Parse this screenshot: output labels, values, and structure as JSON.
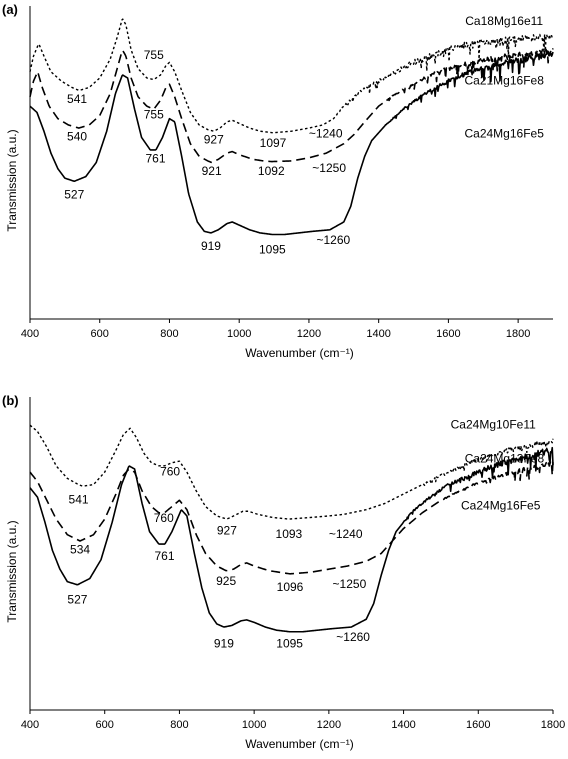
{
  "chart_data": [
    {
      "panel_label": "(a)",
      "type": "line",
      "title": "",
      "xlabel": "Wavenumber (cm⁻¹)",
      "ylabel": "Transmission (a.u.)",
      "xlim": [
        400,
        1900
      ],
      "xticks": [
        400,
        600,
        800,
        1000,
        1200,
        1400,
        1600,
        1800
      ],
      "y_unit": "arbitrary, curves vertically offset",
      "ylim": [
        0,
        100
      ],
      "grid": false,
      "series": [
        {
          "name": "Ca18Mg16e11",
          "dash": "dotted",
          "noise_from": 1270,
          "x": [
            400,
            410,
            425,
            440,
            460,
            490,
            520,
            541,
            570,
            600,
            630,
            650,
            665,
            675,
            690,
            710,
            735,
            755,
            775,
            790,
            800,
            815,
            835,
            860,
            885,
            910,
            927,
            945,
            965,
            980,
            1000,
            1030,
            1060,
            1097,
            1150,
            1200,
            1240,
            1270,
            1300,
            1350,
            1400,
            1450,
            1500,
            1550,
            1600,
            1650,
            1700,
            1750,
            1800,
            1850,
            1900
          ],
          "y": [
            79,
            84,
            88,
            84,
            79,
            76,
            74,
            73,
            74,
            77,
            83,
            90,
            96,
            94,
            86,
            80,
            77,
            76.5,
            78,
            81,
            82,
            79,
            73,
            66,
            62,
            60.5,
            60,
            61,
            63,
            63.5,
            62.5,
            61,
            60,
            59.5,
            60,
            61,
            62,
            64,
            68,
            73,
            76,
            79,
            82,
            84,
            86,
            87.5,
            88.5,
            89,
            89.5,
            90,
            90
          ]
        },
        {
          "name": "Ca21Mg16Fe8",
          "dash": "dashed",
          "noise_from": 1420,
          "x": [
            400,
            410,
            422,
            435,
            455,
            480,
            510,
            540,
            570,
            600,
            630,
            650,
            665,
            675,
            690,
            710,
            735,
            755,
            775,
            790,
            800,
            815,
            835,
            860,
            885,
            910,
            921,
            940,
            965,
            980,
            1000,
            1040,
            1070,
            1092,
            1150,
            1200,
            1250,
            1300,
            1330,
            1360,
            1400,
            1450,
            1500,
            1550,
            1600,
            1650,
            1700,
            1750,
            1800,
            1850,
            1900
          ],
          "y": [
            71,
            76,
            79,
            74,
            68,
            64,
            62,
            61,
            62,
            65,
            72,
            80,
            86,
            84,
            77,
            71,
            68,
            67,
            70,
            74,
            75,
            71,
            64,
            56,
            52,
            50.5,
            50,
            51,
            53,
            53.5,
            52.5,
            51,
            50.5,
            50.3,
            50.5,
            51.5,
            53,
            56,
            59,
            63,
            68,
            72,
            75,
            78,
            80,
            81.5,
            82.5,
            83.5,
            84.5,
            85,
            85.5
          ]
        },
        {
          "name": "Ca24Mg16Fe5",
          "dash": "solid",
          "noise_from": 1420,
          "x": [
            400,
            420,
            440,
            460,
            480,
            500,
            527,
            560,
            590,
            620,
            645,
            665,
            680,
            700,
            720,
            745,
            761,
            780,
            800,
            815,
            835,
            855,
            880,
            900,
            919,
            940,
            965,
            980,
            1000,
            1030,
            1060,
            1095,
            1130,
            1170,
            1210,
            1260,
            1300,
            1320,
            1340,
            1360,
            1380,
            1420,
            1470,
            1520,
            1580,
            1640,
            1700,
            1760,
            1820,
            1900
          ],
          "y": [
            68,
            66,
            60,
            53,
            48,
            45,
            44,
            45.5,
            50,
            60,
            72,
            78,
            77,
            67,
            58,
            54,
            54,
            58,
            64,
            63,
            52,
            40,
            31,
            28,
            27.5,
            28.5,
            30.5,
            31,
            30,
            28.5,
            27.5,
            27,
            27,
            27.5,
            28,
            28.5,
            31,
            36,
            45,
            52,
            57,
            62,
            67,
            71,
            75,
            78,
            80,
            82,
            83,
            85
          ]
        }
      ],
      "annotations": [
        {
          "text": "541",
          "x": 535,
          "y": 69
        },
        {
          "text": "755",
          "x": 755,
          "y": 83
        },
        {
          "text": "755",
          "x": 755,
          "y": 64
        },
        {
          "text": "927",
          "x": 927,
          "y": 56
        },
        {
          "text": "1097",
          "x": 1097,
          "y": 55
        },
        {
          "text": "~1240",
          "x": 1248,
          "y": 58
        },
        {
          "text": "540",
          "x": 535,
          "y": 57
        },
        {
          "text": "761",
          "x": 760,
          "y": 50
        },
        {
          "text": "921",
          "x": 921,
          "y": 46
        },
        {
          "text": "1092",
          "x": 1092,
          "y": 46
        },
        {
          "text": "~1250",
          "x": 1258,
          "y": 47
        },
        {
          "text": "527",
          "x": 527,
          "y": 38.5
        },
        {
          "text": "919",
          "x": 919,
          "y": 22
        },
        {
          "text": "1095",
          "x": 1095,
          "y": 21
        },
        {
          "text": "~1260",
          "x": 1270,
          "y": 24
        },
        {
          "text": "Ca18Mg16e11",
          "x": 1760,
          "y": 94,
          "series": true
        },
        {
          "text": "Ca21Mg16Fe8",
          "x": 1760,
          "y": 75,
          "series": true
        },
        {
          "text": "Ca24Mg16Fe5",
          "x": 1760,
          "y": 58,
          "series": true
        }
      ]
    },
    {
      "panel_label": "(b)",
      "type": "line",
      "title": "",
      "xlabel": "Wavenumber (cm⁻¹)",
      "ylabel": "Transmission (a.u.)",
      "xlim": [
        400,
        1800
      ],
      "xticks": [
        400,
        600,
        800,
        1000,
        1200,
        1400,
        1600,
        1800
      ],
      "y_unit": "arbitrary, curves vertically offset",
      "ylim": [
        0,
        100
      ],
      "grid": false,
      "series": [
        {
          "name": "Ca24Mg10Fe11",
          "dash": "dotted",
          "noise_from": 1450,
          "x": [
            400,
            420,
            445,
            470,
            500,
            530,
            541,
            570,
            600,
            630,
            650,
            668,
            685,
            705,
            725,
            745,
            760,
            780,
            800,
            820,
            845,
            870,
            900,
            927,
            945,
            970,
            985,
            1010,
            1050,
            1093,
            1150,
            1200,
            1240,
            1300,
            1350,
            1400,
            1450,
            1500,
            1550,
            1600,
            1650,
            1700,
            1750,
            1800
          ],
          "y": [
            91,
            89,
            84,
            78,
            74,
            72,
            71.5,
            72,
            76,
            83,
            88,
            90,
            87,
            82,
            79,
            78,
            78,
            79,
            79.5,
            76,
            70,
            65,
            62,
            61,
            62,
            63.5,
            63.5,
            62.5,
            61.5,
            61,
            61.5,
            62,
            62.5,
            64,
            66,
            69,
            72,
            75,
            77.5,
            80,
            82,
            83.5,
            85,
            86
          ]
        },
        {
          "name": "Ca24Mg13Fe8",
          "dash": "dashed",
          "noise_from": 1500,
          "x": [
            400,
            420,
            445,
            470,
            500,
            534,
            570,
            600,
            630,
            650,
            665,
            680,
            700,
            725,
            745,
            760,
            780,
            800,
            820,
            845,
            870,
            900,
            925,
            945,
            965,
            980,
            1000,
            1040,
            1096,
            1150,
            1200,
            1250,
            1300,
            1340,
            1370,
            1400,
            1450,
            1500,
            1550,
            1600,
            1650,
            1700,
            1750,
            1800
          ],
          "y": [
            76,
            73,
            67,
            61,
            56,
            54,
            56,
            61,
            69,
            75,
            77,
            76,
            70,
            65,
            63,
            63,
            65,
            67,
            64,
            56,
            50,
            46,
            44.5,
            45,
            46.5,
            47,
            46,
            44.5,
            43.5,
            44,
            45,
            46,
            47.5,
            50,
            54,
            58,
            63,
            67,
            70,
            72.5,
            74.5,
            76,
            77.5,
            79
          ]
        },
        {
          "name": "Ca24Mg16Fe5",
          "dash": "solid",
          "noise_from": 1400,
          "x": [
            400,
            420,
            440,
            460,
            480,
            500,
            527,
            560,
            590,
            620,
            645,
            665,
            680,
            700,
            720,
            745,
            761,
            780,
            805,
            820,
            840,
            860,
            880,
            900,
            919,
            940,
            965,
            980,
            1000,
            1030,
            1060,
            1095,
            1130,
            1170,
            1210,
            1260,
            1300,
            1320,
            1340,
            1360,
            1380,
            1420,
            1470,
            1520,
            1580,
            1640,
            1700,
            1760,
            1800
          ],
          "y": [
            71,
            68,
            60,
            51,
            45,
            41,
            40,
            42,
            48,
            60,
            72,
            78,
            77,
            66,
            57,
            53,
            53,
            57,
            64,
            62,
            50,
            39,
            31,
            27.5,
            26.5,
            27,
            28.5,
            28.8,
            28,
            26.5,
            25.5,
            25,
            25,
            25.5,
            26,
            26.5,
            29,
            34,
            43,
            51,
            57,
            63,
            68,
            72,
            75,
            78,
            80,
            82,
            83
          ]
        }
      ],
      "annotations": [
        {
          "text": "541",
          "x": 530,
          "y": 66
        },
        {
          "text": "760",
          "x": 775,
          "y": 75
        },
        {
          "text": "760",
          "x": 758,
          "y": 60
        },
        {
          "text": "927",
          "x": 927,
          "y": 56
        },
        {
          "text": "1093",
          "x": 1093,
          "y": 55
        },
        {
          "text": "~1240",
          "x": 1245,
          "y": 55
        },
        {
          "text": "534",
          "x": 534,
          "y": 50
        },
        {
          "text": "761",
          "x": 760,
          "y": 48
        },
        {
          "text": "925",
          "x": 925,
          "y": 40
        },
        {
          "text": "1096",
          "x": 1096,
          "y": 38
        },
        {
          "text": "~1250",
          "x": 1255,
          "y": 39
        },
        {
          "text": "527",
          "x": 527,
          "y": 34
        },
        {
          "text": "919",
          "x": 919,
          "y": 20
        },
        {
          "text": "1095",
          "x": 1095,
          "y": 20
        },
        {
          "text": "~1260",
          "x": 1265,
          "y": 22
        },
        {
          "text": "Ca24Mg10Fe11",
          "x": 1640,
          "y": 90,
          "series": true
        },
        {
          "text": "Ca24Mg13Fe8",
          "x": 1670,
          "y": 79,
          "series": true
        },
        {
          "text": "Ca24Mg16Fe5",
          "x": 1660,
          "y": 64,
          "series": true
        }
      ]
    }
  ]
}
